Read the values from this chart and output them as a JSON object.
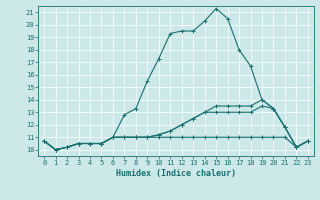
{
  "xlabel": "Humidex (Indice chaleur)",
  "ylabel": "",
  "bg_color": "#cce8e8",
  "grid_color": "#ffffff",
  "line_color": "#1a7070",
  "xlim": [
    -0.5,
    23.5
  ],
  "ylim": [
    9.5,
    21.5
  ],
  "xticks": [
    0,
    1,
    2,
    3,
    4,
    5,
    6,
    7,
    8,
    9,
    10,
    11,
    12,
    13,
    14,
    15,
    16,
    17,
    18,
    19,
    20,
    21,
    22,
    23
  ],
  "yticks": [
    10,
    11,
    12,
    13,
    14,
    15,
    16,
    17,
    18,
    19,
    20,
    21
  ],
  "lines": [
    [
      10.7,
      10.0,
      10.2,
      10.5,
      10.5,
      10.5,
      11.0,
      12.8,
      13.3,
      15.5,
      17.3,
      19.3,
      19.5,
      19.5,
      20.3,
      21.3,
      20.5,
      18.0,
      16.7,
      14.0,
      13.3,
      11.8,
      10.2,
      10.7
    ],
    [
      10.7,
      10.0,
      10.2,
      10.5,
      10.5,
      10.5,
      11.0,
      11.0,
      11.0,
      11.0,
      11.2,
      11.5,
      12.0,
      12.5,
      13.0,
      13.5,
      13.5,
      13.5,
      13.5,
      14.0,
      13.3,
      11.8,
      10.2,
      10.7
    ],
    [
      10.7,
      10.0,
      10.2,
      10.5,
      10.5,
      10.5,
      11.0,
      11.0,
      11.0,
      11.0,
      11.2,
      11.5,
      12.0,
      12.5,
      13.0,
      13.0,
      13.0,
      13.0,
      13.0,
      13.5,
      13.3,
      11.8,
      10.2,
      10.7
    ],
    [
      10.7,
      10.0,
      10.2,
      10.5,
      10.5,
      10.5,
      11.0,
      11.0,
      11.0,
      11.0,
      11.0,
      11.0,
      11.0,
      11.0,
      11.0,
      11.0,
      11.0,
      11.0,
      11.0,
      11.0,
      11.0,
      11.0,
      10.2,
      10.7
    ]
  ]
}
